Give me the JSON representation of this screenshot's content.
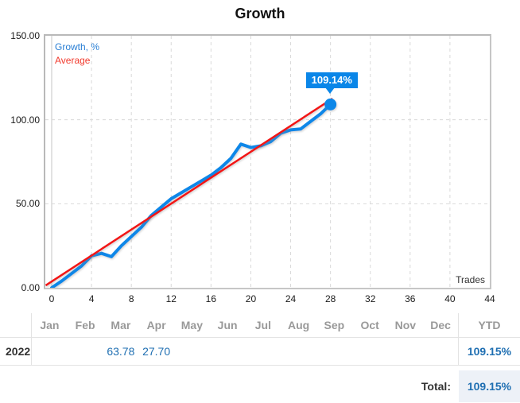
{
  "colors": {
    "growth_line": "#0d87e8",
    "average_line": "#f21212",
    "legend_growth": "#2a7fd4",
    "legend_average": "#f23b2e",
    "callout_bg": "#0a86e8",
    "grid": "#d9d9d9",
    "axis_zero_line": "#c4c4c4",
    "table_value_blue": "#1f6fb2",
    "total_cell_bg": "#edf1f7"
  },
  "chart_data": {
    "type": "line",
    "title": "Growth",
    "xlabel": "Trades",
    "ylabel": "Growth, %",
    "xlim": [
      0,
      44
    ],
    "ylim": [
      0,
      150
    ],
    "grid": "dashed",
    "legend_position": "top-left",
    "x_ticks": [
      0,
      4,
      8,
      12,
      16,
      20,
      24,
      28,
      32,
      36,
      40,
      44
    ],
    "y_ticks": [
      {
        "label": "150.00",
        "value": 150
      },
      {
        "label": "100.00",
        "value": 100
      },
      {
        "label": "50.00",
        "value": 50
      },
      {
        "label": "0.00",
        "value": 0
      }
    ],
    "series": [
      {
        "name": "Growth, %",
        "color": "#0d87e8",
        "x": [
          0,
          1,
          2,
          3,
          4,
          5,
          6,
          7,
          8,
          9,
          10,
          11,
          12,
          13,
          14,
          15,
          16,
          17,
          18,
          19,
          20,
          21,
          22,
          23,
          24,
          25,
          26,
          27,
          28
        ],
        "values": [
          0,
          4,
          8.5,
          13,
          19,
          20.5,
          18.5,
          25,
          30.5,
          36,
          43,
          48,
          53,
          56.5,
          60,
          63.5,
          67,
          71.5,
          77,
          85.5,
          83.5,
          84.5,
          87,
          92,
          94,
          94.5,
          99,
          103.5,
          109.14
        ]
      },
      {
        "name": "Average",
        "color": "#f21212",
        "x": [
          -0.6,
          28.2
        ],
        "values": [
          1.4,
          112.6
        ]
      }
    ],
    "final_marker": {
      "x": 28,
      "value": 109.14
    },
    "final_label": "109.14%"
  },
  "table": {
    "months": [
      "Jan",
      "Feb",
      "Mar",
      "Apr",
      "May",
      "Jun",
      "Jul",
      "Aug",
      "Sep",
      "Oct",
      "Nov",
      "Dec"
    ],
    "ytd_label": "YTD",
    "rows": [
      {
        "year": "2022",
        "monthly": [
          "",
          "",
          "63.78",
          "27.70",
          "",
          "",
          "",
          "",
          "",
          "",
          "",
          ""
        ],
        "ytd": "109.15%"
      }
    ],
    "total_label": "Total:",
    "total_value": "109.15%"
  }
}
